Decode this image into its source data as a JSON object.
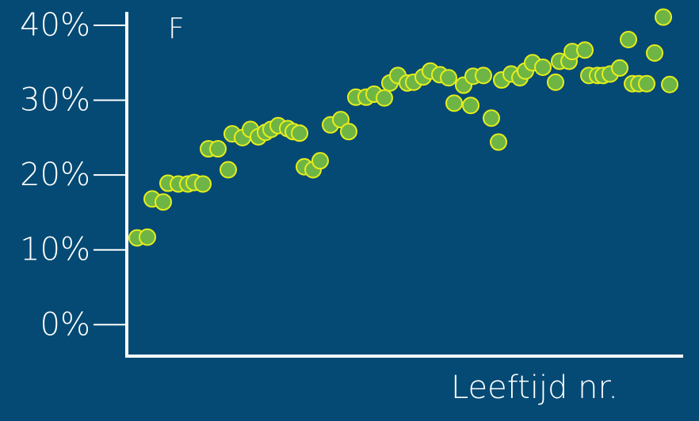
{
  "chart_data": {
    "type": "scatter",
    "title": "F",
    "x_label": "Leeftijd nr.",
    "color": "#6fb545",
    "edge_color": "#e6ee1c",
    "xlim": [
      0,
      70.2
    ],
    "ylim": [
      -4.2,
      41.8
    ],
    "yticks": [
      {
        "value": 0,
        "label": "0%"
      },
      {
        "value": 10,
        "label": "10%"
      },
      {
        "value": 20,
        "label": "20%"
      },
      {
        "value": 30,
        "label": "30%"
      },
      {
        "value": 40,
        "label": "40%"
      }
    ],
    "series": [
      {
        "name": "F",
        "x": [
          1.3,
          2.6,
          3.2,
          4.6,
          5.2,
          6.5,
          7.7,
          8.5,
          9.6,
          10.3,
          11.5,
          12.8,
          13.3,
          14.6,
          15.6,
          16.6,
          17.5,
          18.2,
          19.1,
          20.3,
          21.0,
          21.8,
          22.4,
          23.5,
          24.4,
          25.7,
          27.0,
          28.0,
          28.9,
          30.2,
          31.2,
          32.5,
          33.2,
          34.2,
          35.4,
          36.2,
          37.4,
          38.3,
          39.5,
          40.6,
          41.3,
          42.5,
          43.4,
          43.7,
          45.0,
          46.0,
          46.9,
          47.3,
          48.5,
          49.6,
          50.3,
          51.2,
          52.5,
          54.1,
          54.6,
          55.8,
          56.2,
          57.8,
          58.3,
          59.4,
          60.1,
          61.0,
          62.2,
          63.3,
          63.8,
          64.6,
          65.6,
          66.6,
          67.7,
          68.5
        ],
        "values": [
          11.6,
          11.7,
          16.8,
          16.4,
          18.9,
          18.8,
          18.8,
          19.0,
          18.8,
          23.5,
          23.5,
          20.7,
          25.5,
          25.0,
          26.1,
          25.1,
          25.7,
          26.1,
          26.6,
          26.2,
          25.8,
          25.6,
          21.1,
          20.7,
          21.9,
          26.7,
          27.4,
          25.8,
          30.4,
          30.4,
          30.8,
          30.3,
          32.3,
          33.3,
          32.3,
          32.4,
          33.1,
          33.9,
          33.4,
          33.0,
          29.6,
          32.0,
          29.3,
          33.2,
          33.3,
          27.6,
          24.4,
          32.7,
          33.5,
          33.0,
          33.9,
          35.0,
          34.4,
          32.4,
          35.2,
          35.2,
          36.5,
          36.7,
          33.3,
          33.3,
          33.3,
          33.5,
          34.3,
          38.1,
          32.2,
          32.2,
          32.2,
          36.3,
          41.1,
          32.1
        ]
      }
    ]
  }
}
